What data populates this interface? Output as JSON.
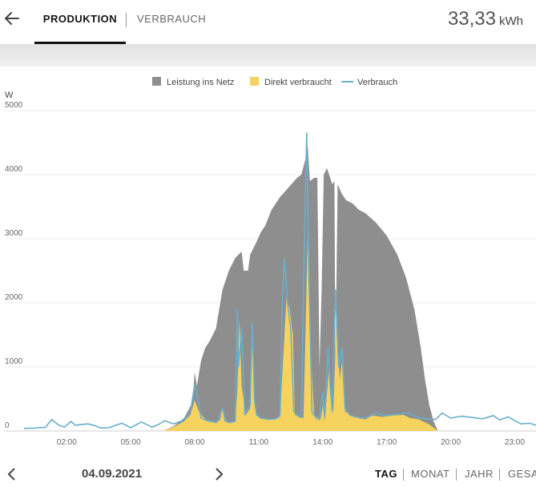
{
  "header": {
    "back_icon": "arrow-left-icon",
    "tabs": [
      {
        "label": "PRODUKTION",
        "active": true
      },
      {
        "label": "VERBRAUCH",
        "active": false
      }
    ],
    "total_value": "33,33",
    "total_unit": "kWh"
  },
  "footer": {
    "prev_icon": "chevron-left-icon",
    "next_icon": "chevron-right-icon",
    "date": "04.09.2021",
    "periods": [
      {
        "label": "TAG",
        "active": true
      },
      {
        "label": "MONAT",
        "active": false
      },
      {
        "label": "JAHR",
        "active": false
      },
      {
        "label": "GESA",
        "active": false
      }
    ]
  },
  "chart_data": {
    "type": "area",
    "ylabel": "W",
    "ylim": [
      0,
      5000
    ],
    "yticks": [
      0,
      1000,
      2000,
      3000,
      4000,
      5000
    ],
    "xlim": [
      0,
      24
    ],
    "xticks": [
      "02:00",
      "05:00",
      "08:00",
      "11:00",
      "14:00",
      "17:00",
      "20:00",
      "23:00"
    ],
    "grid": true,
    "legend_position": "top",
    "series": [
      {
        "name": "Leistung ins Netz",
        "type": "area",
        "color": "#8e8e8e",
        "points": [
          [
            6.5,
            0
          ],
          [
            7.0,
            70
          ],
          [
            7.5,
            200
          ],
          [
            7.9,
            450
          ],
          [
            8.0,
            920
          ],
          [
            8.1,
            700
          ],
          [
            8.3,
            1100
          ],
          [
            8.5,
            1300
          ],
          [
            8.7,
            1400
          ],
          [
            9.0,
            1600
          ],
          [
            9.3,
            2200
          ],
          [
            9.6,
            2500
          ],
          [
            9.9,
            2700
          ],
          [
            10.2,
            2800
          ],
          [
            10.3,
            2500
          ],
          [
            10.5,
            2500
          ],
          [
            10.6,
            2750
          ],
          [
            10.9,
            2950
          ],
          [
            11.1,
            3100
          ],
          [
            11.3,
            3200
          ],
          [
            11.6,
            3450
          ],
          [
            12.0,
            3650
          ],
          [
            12.4,
            3800
          ],
          [
            12.8,
            3950
          ],
          [
            13.0,
            4000
          ],
          [
            13.2,
            4250
          ],
          [
            13.3,
            4450
          ],
          [
            13.4,
            3900
          ],
          [
            13.6,
            3950
          ],
          [
            13.75,
            3950
          ],
          [
            13.85,
            1000
          ],
          [
            13.95,
            2200
          ],
          [
            14.05,
            4000
          ],
          [
            14.2,
            4100
          ],
          [
            14.35,
            3950
          ],
          [
            14.45,
            3850
          ],
          [
            14.55,
            3900
          ],
          [
            14.6,
            1000
          ],
          [
            14.7,
            3850
          ],
          [
            14.9,
            3700
          ],
          [
            15.1,
            3600
          ],
          [
            15.4,
            3550
          ],
          [
            15.7,
            3450
          ],
          [
            16.0,
            3400
          ],
          [
            16.5,
            3250
          ],
          [
            17.0,
            3050
          ],
          [
            17.5,
            2750
          ],
          [
            17.9,
            2400
          ],
          [
            18.3,
            1900
          ],
          [
            18.6,
            1300
          ],
          [
            18.8,
            800
          ],
          [
            19.0,
            400
          ],
          [
            19.2,
            150
          ],
          [
            19.4,
            0
          ]
        ]
      },
      {
        "name": "Direkt verbraucht",
        "type": "area",
        "color": "#f5d35e",
        "points": [
          [
            6.5,
            0
          ],
          [
            7.0,
            60
          ],
          [
            7.5,
            150
          ],
          [
            7.8,
            250
          ],
          [
            8.0,
            480
          ],
          [
            8.2,
            300
          ],
          [
            8.5,
            180
          ],
          [
            8.8,
            140
          ],
          [
            9.0,
            120
          ],
          [
            9.2,
            180
          ],
          [
            9.3,
            350
          ],
          [
            9.4,
            150
          ],
          [
            9.6,
            130
          ],
          [
            9.9,
            140
          ],
          [
            10.0,
            650
          ],
          [
            10.1,
            1750
          ],
          [
            10.2,
            700
          ],
          [
            10.4,
            250
          ],
          [
            10.6,
            350
          ],
          [
            10.7,
            1400
          ],
          [
            10.8,
            400
          ],
          [
            10.9,
            240
          ],
          [
            11.3,
            180
          ],
          [
            11.8,
            180
          ],
          [
            12.0,
            220
          ],
          [
            12.2,
            1450
          ],
          [
            12.3,
            2100
          ],
          [
            12.45,
            1900
          ],
          [
            12.6,
            1500
          ],
          [
            12.7,
            250
          ],
          [
            13.1,
            200
          ],
          [
            13.2,
            1600
          ],
          [
            13.3,
            3100
          ],
          [
            13.4,
            1500
          ],
          [
            13.6,
            250
          ],
          [
            13.9,
            180
          ],
          [
            14.0,
            400
          ],
          [
            14.1,
            150
          ],
          [
            14.3,
            1000
          ],
          [
            14.4,
            600
          ],
          [
            14.5,
            300
          ],
          [
            14.65,
            1800
          ],
          [
            14.8,
            800
          ],
          [
            14.95,
            1200
          ],
          [
            15.05,
            300
          ],
          [
            15.3,
            250
          ],
          [
            15.5,
            220
          ],
          [
            16.0,
            180
          ],
          [
            16.3,
            240
          ],
          [
            16.8,
            220
          ],
          [
            17.3,
            240
          ],
          [
            17.8,
            250
          ],
          [
            18.1,
            200
          ],
          [
            18.5,
            180
          ],
          [
            19.0,
            100
          ],
          [
            19.4,
            0
          ]
        ]
      },
      {
        "name": "Verbrauch",
        "type": "line",
        "color": "#6aaecd",
        "points": [
          [
            0.0,
            40
          ],
          [
            0.5,
            45
          ],
          [
            1.0,
            55
          ],
          [
            1.3,
            180
          ],
          [
            1.6,
            95
          ],
          [
            1.9,
            60
          ],
          [
            2.2,
            150
          ],
          [
            2.4,
            90
          ],
          [
            3.0,
            110
          ],
          [
            3.3,
            85
          ],
          [
            3.6,
            45
          ],
          [
            4.0,
            50
          ],
          [
            4.3,
            90
          ],
          [
            4.6,
            120
          ],
          [
            5.0,
            50
          ],
          [
            5.5,
            140
          ],
          [
            6.0,
            60
          ],
          [
            6.3,
            100
          ],
          [
            6.6,
            160
          ],
          [
            7.0,
            110
          ],
          [
            7.5,
            170
          ],
          [
            7.8,
            300
          ],
          [
            8.0,
            720
          ],
          [
            8.15,
            500
          ],
          [
            8.3,
            200
          ],
          [
            8.6,
            160
          ],
          [
            8.9,
            140
          ],
          [
            9.1,
            160
          ],
          [
            9.3,
            360
          ],
          [
            9.45,
            160
          ],
          [
            9.6,
            130
          ],
          [
            9.9,
            150
          ],
          [
            10.0,
            1900
          ],
          [
            10.05,
            1000
          ],
          [
            10.2,
            1600
          ],
          [
            10.35,
            250
          ],
          [
            10.6,
            400
          ],
          [
            10.7,
            1700
          ],
          [
            10.8,
            500
          ],
          [
            10.9,
            250
          ],
          [
            11.1,
            200
          ],
          [
            11.5,
            180
          ],
          [
            11.8,
            190
          ],
          [
            12.0,
            240
          ],
          [
            12.1,
            1900
          ],
          [
            12.2,
            2700
          ],
          [
            12.35,
            2000
          ],
          [
            12.5,
            1600
          ],
          [
            12.65,
            300
          ],
          [
            12.9,
            220
          ],
          [
            13.0,
            210
          ],
          [
            13.1,
            2200
          ],
          [
            13.2,
            3800
          ],
          [
            13.25,
            4650
          ],
          [
            13.35,
            2500
          ],
          [
            13.5,
            300
          ],
          [
            13.7,
            200
          ],
          [
            13.85,
            180
          ],
          [
            14.0,
            600
          ],
          [
            14.1,
            230
          ],
          [
            14.25,
            1300
          ],
          [
            14.35,
            700
          ],
          [
            14.45,
            300
          ],
          [
            14.6,
            2200
          ],
          [
            14.75,
            1000
          ],
          [
            14.9,
            1300
          ],
          [
            15.05,
            350
          ],
          [
            15.3,
            240
          ],
          [
            15.8,
            200
          ],
          [
            16.2,
            230
          ],
          [
            16.5,
            280
          ],
          [
            16.9,
            240
          ],
          [
            17.5,
            260
          ],
          [
            18.0,
            280
          ],
          [
            18.4,
            220
          ],
          [
            18.8,
            190
          ],
          [
            19.3,
            180
          ],
          [
            19.6,
            280
          ],
          [
            20.0,
            200
          ],
          [
            20.5,
            230
          ],
          [
            21.0,
            210
          ],
          [
            21.5,
            190
          ],
          [
            22.0,
            240
          ],
          [
            22.3,
            170
          ],
          [
            22.7,
            220
          ],
          [
            23.0,
            160
          ],
          [
            23.3,
            110
          ],
          [
            23.7,
            120
          ],
          [
            24.0,
            90
          ]
        ]
      }
    ]
  }
}
